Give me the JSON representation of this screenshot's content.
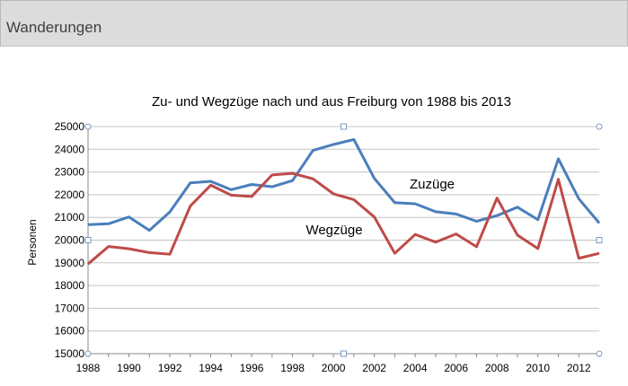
{
  "header": {
    "title": "Wanderungen"
  },
  "chart_data": {
    "type": "line",
    "title": "Zu- und Wegzüge nach und aus Freiburg von 1988 bis 2013",
    "xlabel": "",
    "ylabel": "Personen",
    "ylim": [
      15000,
      25000
    ],
    "yticks": [
      15000,
      16000,
      17000,
      18000,
      19000,
      20000,
      21000,
      22000,
      23000,
      24000,
      25000
    ],
    "xlim": [
      1988,
      2013
    ],
    "xticks": [
      1988,
      1990,
      1992,
      1994,
      1996,
      1998,
      2000,
      2002,
      2004,
      2006,
      2008,
      2010,
      2012
    ],
    "grid": "horizontal",
    "legend": "inline labels",
    "x": [
      1988,
      1989,
      1990,
      1991,
      1992,
      1993,
      1994,
      1995,
      1996,
      1997,
      1998,
      1999,
      2000,
      2001,
      2002,
      2003,
      2004,
      2005,
      2006,
      2007,
      2008,
      2009,
      2010,
      2011,
      2012,
      2013
    ],
    "series": [
      {
        "name": "Zuzüge",
        "color": "#4a7ebb",
        "values": [
          20680,
          20720,
          21020,
          20430,
          21240,
          22520,
          22590,
          22220,
          22450,
          22350,
          22620,
          23950,
          24210,
          24430,
          22720,
          21650,
          21600,
          21250,
          21150,
          20830,
          21080,
          21450,
          20900,
          23580,
          21820,
          20750
        ]
      },
      {
        "name": "Wegzüge",
        "color": "#be4b48",
        "values": [
          18950,
          19720,
          19620,
          19450,
          19380,
          21500,
          22420,
          21980,
          21920,
          22870,
          22940,
          22700,
          22040,
          21780,
          21020,
          19420,
          20250,
          19910,
          20270,
          19710,
          21850,
          20220,
          19630,
          22680,
          19200,
          19420
        ]
      }
    ]
  }
}
